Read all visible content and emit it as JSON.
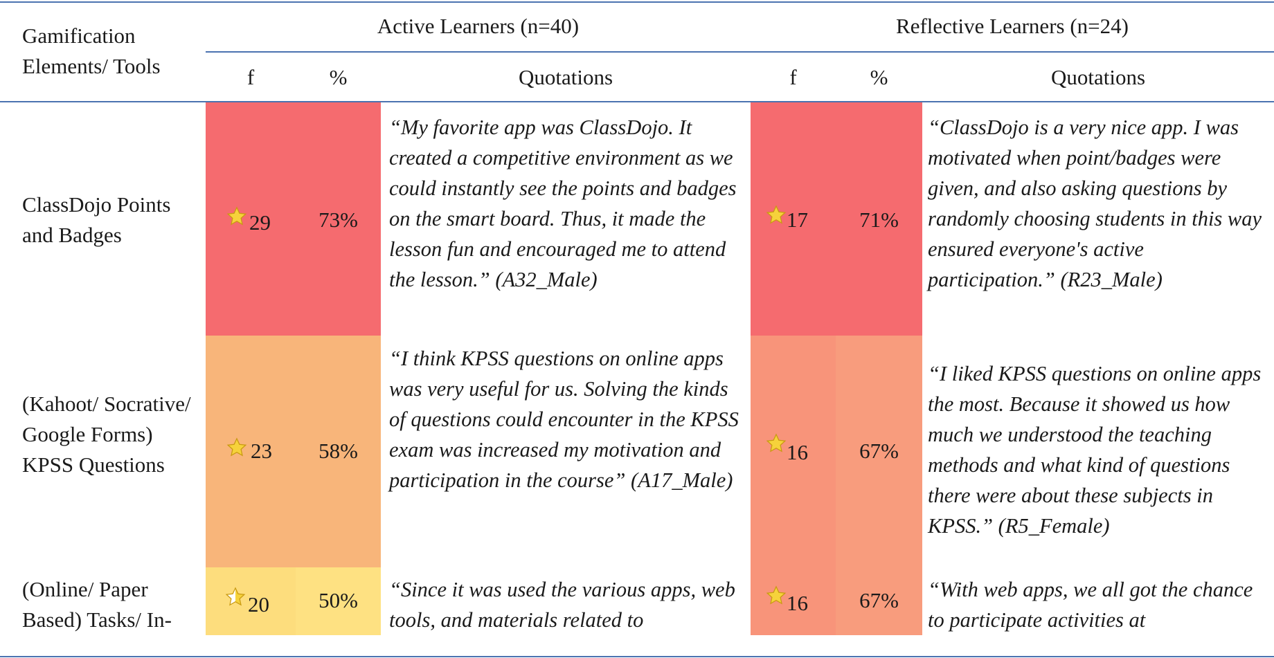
{
  "header": {
    "elements_col": "Gamification Elements/ Tools",
    "active_group": "Active Learners (n=40)",
    "reflective_group": "Reflective Learners (n=24)",
    "f": "f",
    "pct": "%",
    "quotations": "Quotations"
  },
  "rows": [
    {
      "element": "ClassDojo Points and Badges",
      "active": {
        "f": "29",
        "pct": "73%",
        "quote": "“My favorite app was ClassDojo. It created a competitive environment as we could instantly see the points and badges on the smart board. Thus, it made the lesson fun and encouraged me to attend the lesson.” (A32_Male)",
        "color": "#f56b6f"
      },
      "reflective": {
        "f": "17",
        "pct": "71%",
        "quote": "“ClassDojo is a very nice app. I was motivated when point/badges were given, and also asking questions by randomly choosing students in this way ensured everyone's active participation.” (R23_Male)",
        "color": "#f56b6f"
      }
    },
    {
      "element": "(Kahoot/ Socrative/ Google Forms) KPSS Questions",
      "active": {
        "f": "23",
        "pct": "58%",
        "quote": "“I think KPSS questions on online apps was very useful for us. Solving the kinds of questions could encounter in the KPSS exam was increased my motivation and participation in the course” (A17_Male)",
        "color": "#f8b57a"
      },
      "reflective": {
        "f": "16",
        "pct": "67%",
        "quote": "“I liked KPSS questions on online apps the most. Because it showed us how much we understood the teaching methods and what kind of questions there were about these subjects in KPSS.” (R5_Female)",
        "color": "#f89479"
      }
    },
    {
      "element": "(Online/ Paper Based) Tasks/ In-",
      "active": {
        "f": "20",
        "pct": "50%",
        "quote": "“Since it was used the various apps, web tools, and materials related to",
        "color": "#fddd7d"
      },
      "reflective": {
        "f": "16",
        "pct": "67%",
        "quote": "“With web apps, we all got the chance to participate activities at",
        "color": "#f89479"
      }
    }
  ]
}
